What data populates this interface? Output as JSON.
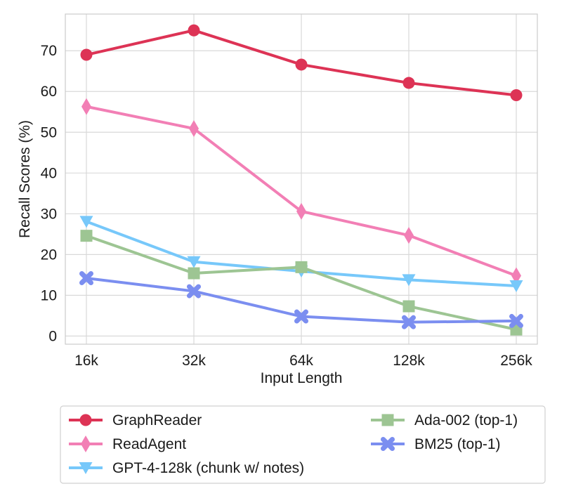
{
  "chart_data": {
    "type": "line",
    "title": "",
    "xlabel": "Input Length",
    "ylabel": "Recall Scores (%)",
    "categories": [
      "16k",
      "32k",
      "64k",
      "128k",
      "256k"
    ],
    "ylim": [
      -2,
      79
    ],
    "yticks": [
      0,
      10,
      20,
      30,
      40,
      50,
      60,
      70
    ],
    "grid": true,
    "legend_position": "below",
    "series": [
      {
        "name": "GraphReader",
        "marker": "circle",
        "color": "#dd3355",
        "values": [
          69.0,
          75.0,
          66.6,
          62.1,
          59.1
        ]
      },
      {
        "name": "ReadAgent",
        "marker": "thin_diamond",
        "color": "#f27fb5",
        "values": [
          56.3,
          50.9,
          30.6,
          24.7,
          14.8
        ]
      },
      {
        "name": "GPT-4-128k (chunk w/ notes)",
        "marker": "triangle_down",
        "color": "#77c8fa",
        "values": [
          28.1,
          18.2,
          15.9,
          13.8,
          12.3
        ]
      },
      {
        "name": "Ada-002 (top-1)",
        "marker": "square",
        "color": "#9dc593",
        "values": [
          24.6,
          15.4,
          16.9,
          7.3,
          1.6
        ]
      },
      {
        "name": "BM25 (top-1)",
        "marker": "x",
        "color": "#7b8ef0",
        "values": [
          14.2,
          11.0,
          4.8,
          3.4,
          3.7
        ]
      }
    ]
  }
}
